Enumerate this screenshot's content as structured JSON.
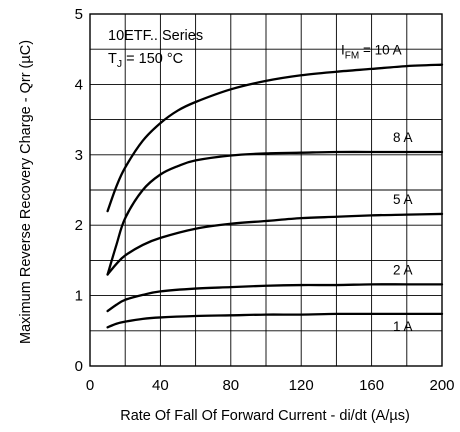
{
  "chart_data": {
    "type": "line",
    "title": "10ETF.. Series",
    "condition": {
      "prefix": "T",
      "sub": "J",
      "suffix": " = 150 °C"
    },
    "xlabel": "Rate Of Fall Of Forward Current - di/dt (A/µs)",
    "ylabel": "Maximum Reverse Recovery Charge - Qrr (µC)",
    "xlim": [
      0,
      200
    ],
    "ylim": [
      0,
      5
    ],
    "xticks": [
      0,
      40,
      80,
      120,
      160,
      200
    ],
    "yticks": [
      0,
      1,
      2,
      3,
      4,
      5
    ],
    "grid": true,
    "series_prefix": {
      "main": "I",
      "sub": "FM",
      "eq": " = "
    },
    "series": [
      {
        "name": "10 A",
        "x": [
          10,
          15,
          20,
          30,
          40,
          50,
          60,
          80,
          100,
          120,
          140,
          160,
          180,
          200
        ],
        "y": [
          2.2,
          2.55,
          2.82,
          3.2,
          3.45,
          3.63,
          3.75,
          3.93,
          4.05,
          4.13,
          4.18,
          4.22,
          4.26,
          4.28
        ]
      },
      {
        "name": "8 A",
        "x": [
          10,
          15,
          20,
          30,
          40,
          50,
          60,
          80,
          100,
          120,
          140,
          160,
          180,
          200
        ],
        "y": [
          1.3,
          1.72,
          2.1,
          2.5,
          2.72,
          2.84,
          2.92,
          2.99,
          3.02,
          3.03,
          3.04,
          3.04,
          3.04,
          3.04
        ]
      },
      {
        "name": "5 A",
        "x": [
          10,
          15,
          20,
          30,
          40,
          60,
          80,
          100,
          120,
          140,
          160,
          180,
          200
        ],
        "y": [
          1.3,
          1.45,
          1.57,
          1.72,
          1.82,
          1.95,
          2.02,
          2.06,
          2.1,
          2.12,
          2.14,
          2.15,
          2.16
        ]
      },
      {
        "name": "2 A",
        "x": [
          10,
          15,
          20,
          30,
          40,
          60,
          80,
          100,
          120,
          140,
          160,
          180,
          200
        ],
        "y": [
          0.78,
          0.87,
          0.94,
          1.01,
          1.06,
          1.1,
          1.12,
          1.14,
          1.15,
          1.15,
          1.16,
          1.16,
          1.16
        ]
      },
      {
        "name": "1 A",
        "x": [
          10,
          15,
          20,
          30,
          40,
          60,
          80,
          100,
          120,
          140,
          160,
          180,
          200
        ],
        "y": [
          0.55,
          0.6,
          0.63,
          0.67,
          0.69,
          0.71,
          0.72,
          0.73,
          0.73,
          0.74,
          0.74,
          0.74,
          0.74
        ]
      }
    ]
  }
}
